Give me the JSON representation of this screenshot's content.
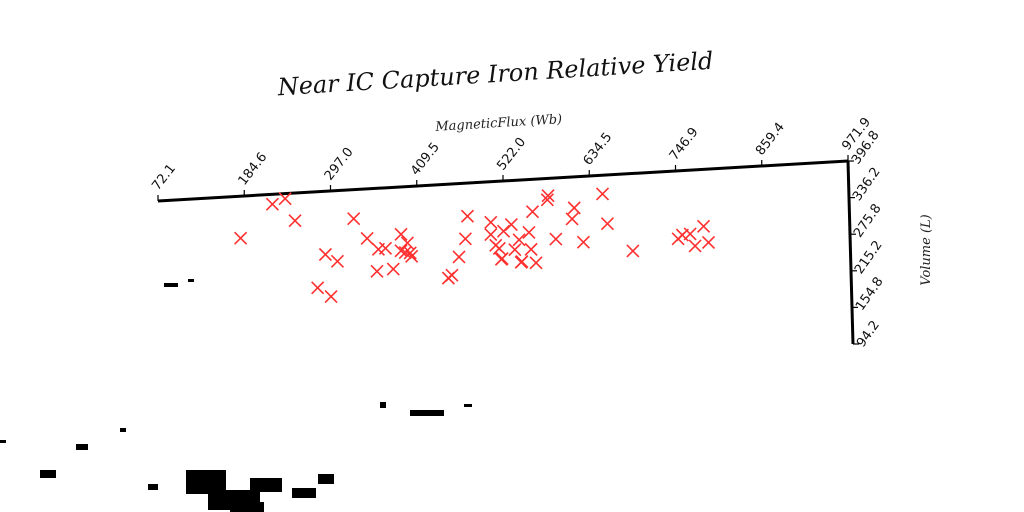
{
  "chart_data": {
    "type": "scatter",
    "title": "Near IC Capture Iron Relative Yield",
    "xlabel": "MagneticFlux (Wb)",
    "ylabel": "Volume (L)",
    "x_ticks": [
      "72.1",
      "184.6",
      "297.0",
      "409.5",
      "522.0",
      "634.5",
      "746.9",
      "859.4",
      "971.9"
    ],
    "y_ticks": [
      "94.2",
      "154.8",
      "215.2",
      "275.8",
      "336.2",
      "396.8"
    ],
    "xlim": [
      72.1,
      971.9
    ],
    "ylim": [
      94.2,
      396.8
    ],
    "marker": "x",
    "color": "#ff3030",
    "grid": false,
    "points": [
      [
        155,
        276
      ],
      [
        200,
        323
      ],
      [
        218,
        330
      ],
      [
        232,
        297
      ],
      [
        264,
        197
      ],
      [
        283,
        183
      ],
      [
        275,
        245
      ],
      [
        292,
        234
      ],
      [
        315,
        295
      ],
      [
        334,
        265
      ],
      [
        348,
        216
      ],
      [
        350,
        248
      ],
      [
        360,
        249
      ],
      [
        371,
        218
      ],
      [
        382,
        268
      ],
      [
        382,
        244
      ],
      [
        388,
        241
      ],
      [
        391,
        255
      ],
      [
        395,
        240
      ],
      [
        397,
        235
      ],
      [
        454,
        204
      ],
      [
        449,
        200
      ],
      [
        464,
        230
      ],
      [
        473,
        256
      ],
      [
        476,
        289
      ],
      [
        509,
        260
      ],
      [
        509,
        278
      ],
      [
        516,
        244
      ],
      [
        521,
        239
      ],
      [
        524,
        223
      ],
      [
        525,
        224
      ],
      [
        527,
        264
      ],
      [
        538,
        273
      ],
      [
        543,
        236
      ],
      [
        549,
        250
      ],
      [
        552,
        217
      ],
      [
        553,
        218
      ],
      [
        563,
        260
      ],
      [
        566,
        235
      ],
      [
        568,
        290
      ],
      [
        573,
        215
      ],
      [
        589,
        306
      ],
      [
        590,
        312
      ],
      [
        601,
        248
      ],
      [
        624,
        276
      ],
      [
        627,
        292
      ],
      [
        640,
        241
      ],
      [
        667,
        310
      ],
      [
        674,
        266
      ],
      [
        710,
        224
      ],
      [
        774,
        238
      ],
      [
        780,
        243
      ],
      [
        791,
        244
      ],
      [
        798,
        226
      ],
      [
        810,
        254
      ],
      [
        817,
        230
      ]
    ]
  }
}
